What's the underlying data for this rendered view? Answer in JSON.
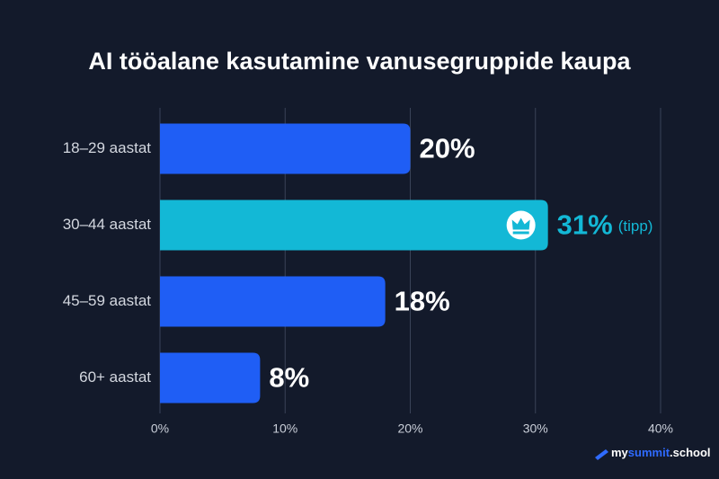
{
  "chart_data": {
    "type": "barh",
    "title": "AI tööalane kasutamine vanusegruppide kaupa",
    "categories": [
      "18–29 aastat",
      "30–44 aastat",
      "45–59 aastat",
      "60+ aastat"
    ],
    "values": [
      20,
      31,
      18,
      8
    ],
    "value_labels": [
      "20%",
      "31%",
      "18%",
      "8%"
    ],
    "colors": [
      "#1f5ef5",
      "#13b8d6",
      "#1f5ef5",
      "#1f5ef5"
    ],
    "highlight": {
      "category": "30–44 aastat",
      "label": "(tipp)"
    },
    "xlim": [
      0,
      40
    ],
    "xticks": [
      {
        "value": 0,
        "label": "0%"
      },
      {
        "value": 10,
        "label": "10%"
      },
      {
        "value": 20,
        "label": "20%"
      },
      {
        "value": 30,
        "label": "30%"
      },
      {
        "value": 40,
        "label": "40%"
      }
    ],
    "grid": true
  },
  "watermark": [
    "my",
    "summit",
    ".school"
  ]
}
